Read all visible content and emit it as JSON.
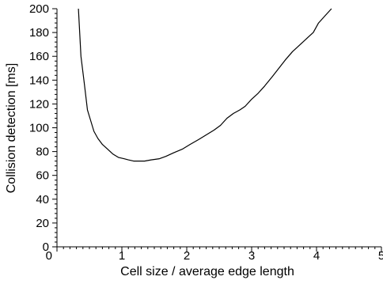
{
  "chart_data": {
    "type": "line",
    "title": "",
    "xlabel": "Cell size / average edge length",
    "ylabel": "Collision detection [ms]",
    "xlim": [
      0,
      5
    ],
    "ylim": [
      0,
      200
    ],
    "grid": false,
    "legend": "none",
    "x_ticks": [
      0,
      1,
      2,
      3,
      4,
      5
    ],
    "y_ticks": [
      0,
      20,
      40,
      60,
      80,
      100,
      120,
      140,
      160,
      180,
      200
    ],
    "line_color": "#000000",
    "series": [
      {
        "x": [
          0.33,
          0.37,
          0.42,
          0.47,
          0.52,
          0.57,
          0.63,
          0.7,
          0.78,
          0.86,
          0.95,
          1.03,
          1.1,
          1.18,
          1.27,
          1.35,
          1.45,
          1.58,
          1.68,
          1.8,
          1.93,
          2.05,
          2.18,
          2.3,
          2.42,
          2.52,
          2.62,
          2.72,
          2.82,
          2.9,
          3.0,
          3.1,
          3.2,
          3.32,
          3.42,
          3.52,
          3.63,
          3.75,
          3.87,
          3.95,
          4.03,
          4.13,
          4.23
        ],
        "y": [
          200,
          160,
          138,
          115,
          106,
          97,
          91,
          86,
          82,
          78,
          75,
          74,
          73,
          72,
          72,
          72,
          73,
          74,
          76,
          79,
          82,
          86,
          90,
          94,
          98,
          102,
          108,
          112,
          115,
          118,
          124,
          129,
          135,
          143,
          150,
          157,
          164,
          170,
          176,
          180,
          188,
          194,
          200
        ]
      }
    ]
  }
}
